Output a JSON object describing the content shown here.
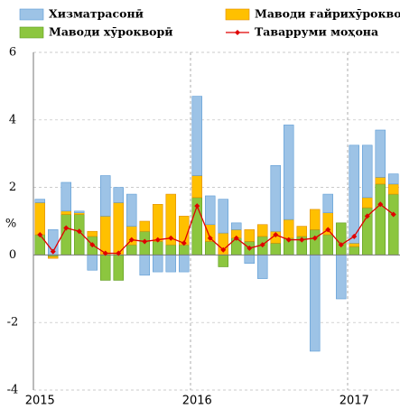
{
  "chart_data": {
    "type": "bar",
    "stacked": true,
    "categories": [
      "2015",
      null,
      null,
      null,
      null,
      null,
      null,
      null,
      null,
      null,
      null,
      null,
      "2016",
      null,
      null,
      null,
      null,
      null,
      null,
      null,
      null,
      null,
      null,
      null,
      "2017",
      null,
      null,
      null
    ],
    "series": [
      {
        "name": "Хизматрасонӣ",
        "color": "#9dc3e6",
        "values": [
          0.1,
          0.75,
          0.85,
          0.05,
          -0.45,
          1.2,
          0.45,
          0.95,
          -0.6,
          -0.5,
          -0.5,
          -0.5,
          2.35,
          0.85,
          1.0,
          0.2,
          -0.25,
          -0.7,
          1.95,
          2.8,
          0,
          -2.85,
          0.55,
          -1.3,
          2.9,
          1.55,
          1.4,
          0.3
        ]
      },
      {
        "name": "Маводи ғайрихӯрокворӣ",
        "color": "#ffc000",
        "values": [
          0.95,
          -0.05,
          0.1,
          0.05,
          0.15,
          1.15,
          1.55,
          0.55,
          0.3,
          1.1,
          1.5,
          0.85,
          0.65,
          0.5,
          0.65,
          0.25,
          0.35,
          0.35,
          0.35,
          0.55,
          0.3,
          0.6,
          0.65,
          0,
          0.1,
          0.3,
          0.2,
          0.3
        ]
      },
      {
        "name": "Маводи хӯрокворӣ",
        "color": "#8cc63f",
        "values": [
          0.6,
          -0.05,
          1.2,
          1.2,
          0.55,
          -0.75,
          -0.75,
          0.3,
          0.7,
          0.4,
          0.3,
          0.3,
          1.7,
          0.4,
          -0.35,
          0.5,
          0.4,
          0.55,
          0.35,
          0.5,
          0.55,
          0.75,
          0.6,
          0.95,
          0.25,
          1.4,
          2.1,
          1.8
        ]
      },
      {
        "name": "Таварруми моҳона",
        "color": "#e00000",
        "type": "line",
        "values": [
          0.6,
          0.1,
          0.8,
          0.7,
          0.3,
          0.05,
          0.05,
          0.45,
          0.4,
          0.45,
          0.5,
          0.35,
          1.45,
          0.5,
          0.15,
          0.5,
          0.2,
          0.3,
          0.6,
          0.45,
          0.45,
          0.5,
          0.75,
          0.3,
          0.55,
          1.15,
          1.5,
          1.2
        ]
      }
    ],
    "y_label": "%",
    "ylim": [
      -4,
      6
    ],
    "yticks": [
      6,
      4,
      2,
      0,
      -2,
      -4
    ],
    "grid": true
  }
}
